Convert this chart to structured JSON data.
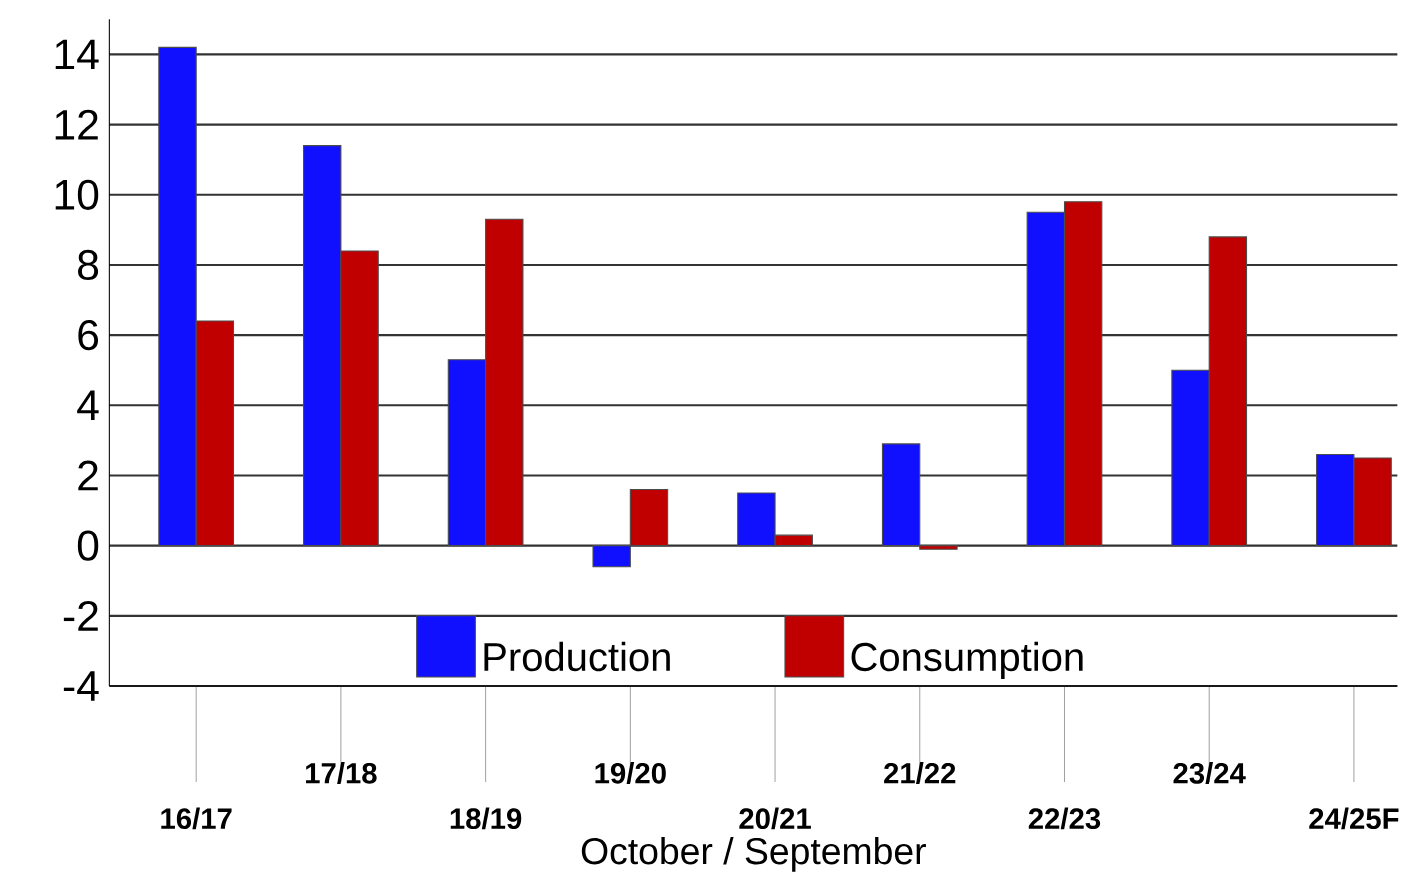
{
  "chart_data": {
    "type": "bar",
    "xlabel": "October / September",
    "categories": [
      "16/17",
      "17/18",
      "18/19",
      "19/20",
      "20/21",
      "21/22",
      "22/23",
      "23/24",
      "24/25F"
    ],
    "series": [
      {
        "name": "Production",
        "color": "#1010ff",
        "values": [
          14.2,
          11.4,
          5.3,
          -0.6,
          1.5,
          2.9,
          9.5,
          5.0,
          2.6
        ]
      },
      {
        "name": "Consumption",
        "color": "#c00000",
        "values": [
          6.4,
          8.4,
          9.3,
          1.6,
          0.3,
          -0.1,
          9.8,
          8.8,
          2.5
        ]
      }
    ],
    "ylim": [
      -4,
      15
    ],
    "yticks": [
      -4,
      -2,
      0,
      2,
      4,
      6,
      8,
      10,
      12,
      14
    ],
    "grid": "y",
    "legend": "bottom"
  }
}
